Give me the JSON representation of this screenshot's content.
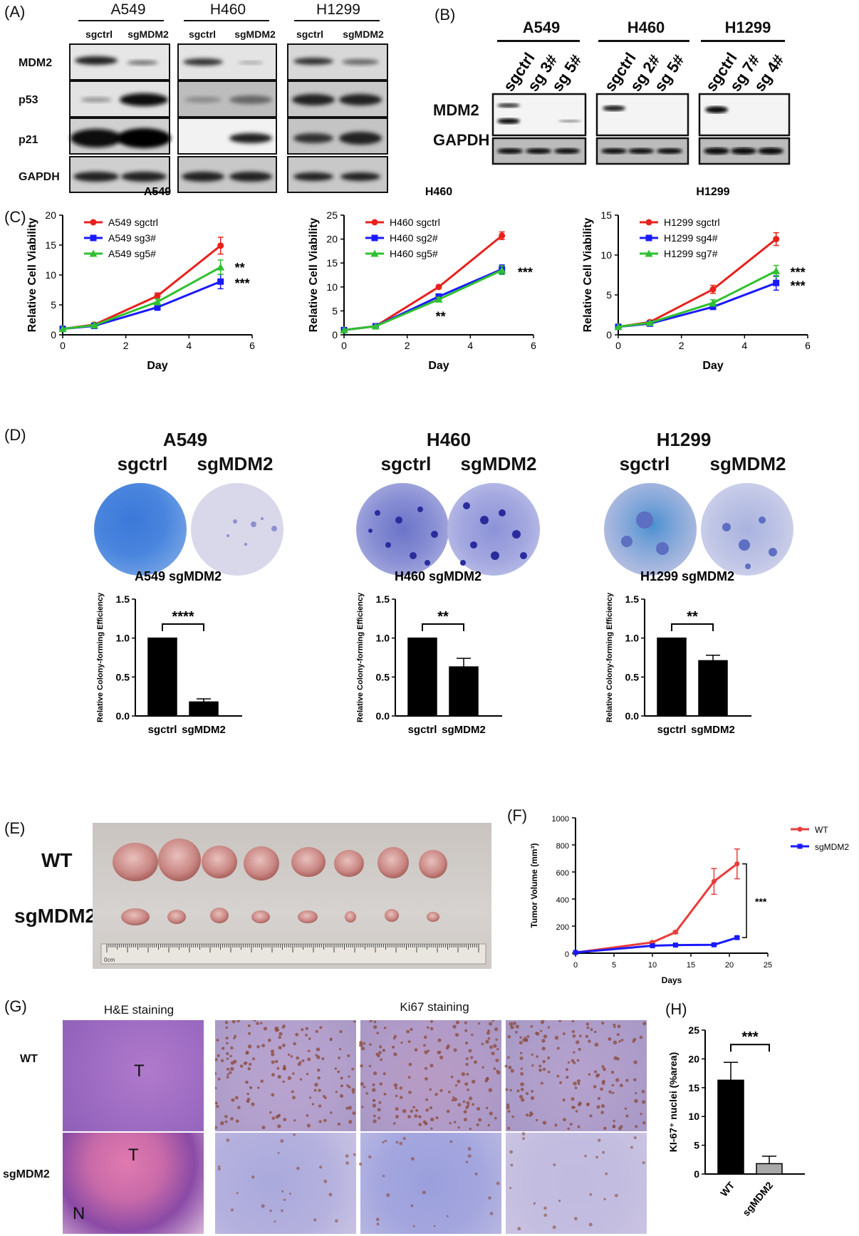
{
  "panel_labels": {
    "A": "(A)",
    "B": "(B)",
    "C": "(C)",
    "D": "(D)",
    "E": "(E)",
    "F": "(F)",
    "G": "(G)",
    "H": "(H)"
  },
  "panelA": {
    "cell_lines": [
      {
        "name": "A549",
        "lanes": [
          "sgctrl",
          "sgMDM2"
        ]
      },
      {
        "name": "H460",
        "lanes": [
          "sgctrl",
          "sgMDM2"
        ]
      },
      {
        "name": "H1299",
        "lanes": [
          "sgctrl",
          "sgMDM2"
        ]
      }
    ],
    "proteins": [
      "MDM2",
      "p53",
      "p21",
      "GAPDH"
    ]
  },
  "panelB": {
    "cell_lines": [
      {
        "name": "A549",
        "lanes": [
          "sgctrl",
          "sg 3#",
          "sg 5#"
        ]
      },
      {
        "name": "H460",
        "lanes": [
          "sgctrl",
          "sg 2#",
          "sg 5#"
        ]
      },
      {
        "name": "H1299",
        "lanes": [
          "sgctrl",
          "sg 7#",
          "sg 4#"
        ]
      }
    ],
    "proteins": [
      "MDM2",
      "GAPDH"
    ]
  },
  "panelD": {
    "cells": [
      {
        "name": "A549",
        "left": "sgctrl",
        "right": "sgMDM2"
      },
      {
        "name": "H460",
        "left": "sgctrl",
        "right": "sgMDM2"
      },
      {
        "name": "H1299",
        "left": "sgctrl",
        "right": "sgMDM2"
      }
    ]
  },
  "panelE": {
    "rows": [
      "WT",
      "sgMDM2"
    ],
    "ruler_label": "0cm"
  },
  "panelG": {
    "he_title": "H&E staining",
    "ki67_title": "Ki67 staining",
    "rows": [
      "WT",
      "sgMDM2"
    ],
    "marks": {
      "tumor": "T",
      "necrosis": "N"
    }
  },
  "chart_data": [
    {
      "id": "C1",
      "type": "line",
      "title": "A549",
      "xlabel": "Day",
      "ylabel": "Relative Cell Viability",
      "xlim": [
        0,
        6
      ],
      "ylim": [
        0,
        20
      ],
      "xticks": [
        0,
        2,
        4,
        6
      ],
      "yticks": [
        0,
        5,
        10,
        15,
        20
      ],
      "legend": "top-left",
      "series": [
        {
          "name": "A549 sgctrl",
          "color": "#e8211d",
          "marker": "circle",
          "x": [
            0,
            1,
            3,
            5
          ],
          "y": [
            1.0,
            1.7,
            6.5,
            14.9
          ],
          "err": [
            0,
            0.1,
            0.5,
            1.4
          ]
        },
        {
          "name": "A549 sg3#",
          "color": "#1a1aff",
          "marker": "square",
          "x": [
            0,
            1,
            3,
            5
          ],
          "y": [
            1.0,
            1.5,
            4.6,
            8.9
          ],
          "err": [
            0,
            0.1,
            0.5,
            1.2
          ]
        },
        {
          "name": "A549 sg5#",
          "color": "#2fc02f",
          "marker": "triangle",
          "x": [
            0,
            1,
            3,
            5
          ],
          "y": [
            1.0,
            1.6,
            5.5,
            11.3
          ],
          "err": [
            0,
            0.1,
            0.5,
            1.2
          ]
        }
      ],
      "annotations": [
        {
          "text": "**",
          "x": 5.45,
          "y": 11.2
        },
        {
          "text": "***",
          "x": 5.45,
          "y": 8.6
        }
      ]
    },
    {
      "id": "C2",
      "type": "line",
      "title": "H460",
      "xlabel": "Day",
      "ylabel": "Relative Cell Viability",
      "xlim": [
        0,
        6
      ],
      "ylim": [
        0,
        25
      ],
      "xticks": [
        0,
        2,
        4,
        6
      ],
      "yticks": [
        0,
        5,
        10,
        15,
        20,
        25
      ],
      "legend": "top-left",
      "series": [
        {
          "name": "H460 sgctrl",
          "color": "#e8211d",
          "marker": "circle",
          "x": [
            0,
            1,
            3,
            5
          ],
          "y": [
            1.0,
            1.8,
            10.0,
            20.7
          ],
          "err": [
            0,
            0.1,
            0.3,
            0.8
          ]
        },
        {
          "name": "H460 sg2#",
          "color": "#1a1aff",
          "marker": "square",
          "x": [
            0,
            1,
            3,
            5
          ],
          "y": [
            1.0,
            1.8,
            8.0,
            13.7
          ],
          "err": [
            0,
            0.1,
            0.4,
            0.9
          ]
        },
        {
          "name": "H460 sg5#",
          "color": "#2fc02f",
          "marker": "triangle",
          "x": [
            0,
            1,
            3,
            5
          ],
          "y": [
            1.0,
            1.8,
            7.4,
            13.5
          ],
          "err": [
            0,
            0.1,
            0.4,
            0.9
          ]
        }
      ],
      "annotations": [
        {
          "text": "***",
          "x": 5.5,
          "y": 13.0
        },
        {
          "text": "**",
          "x": 2.9,
          "y": 3.8
        }
      ]
    },
    {
      "id": "C3",
      "type": "line",
      "title": "H1299",
      "xlabel": "Day",
      "ylabel": "Relative Cell Viability",
      "xlim": [
        0,
        6
      ],
      "ylim": [
        0,
        15
      ],
      "xticks": [
        0,
        2,
        4,
        6
      ],
      "yticks": [
        0,
        5,
        10,
        15
      ],
      "legend": "top-left",
      "series": [
        {
          "name": "H1299 sgctrl",
          "color": "#e8211d",
          "marker": "circle",
          "x": [
            0,
            1,
            3,
            5
          ],
          "y": [
            1.0,
            1.6,
            5.7,
            12.0
          ],
          "err": [
            0,
            0.1,
            0.5,
            0.8
          ]
        },
        {
          "name": "H1299 sg4#",
          "color": "#1a1aff",
          "marker": "square",
          "x": [
            0,
            1,
            3,
            5
          ],
          "y": [
            1.0,
            1.4,
            3.5,
            6.5
          ],
          "err": [
            0,
            0.1,
            0.3,
            0.9
          ]
        },
        {
          "name": "H1299 sg7#",
          "color": "#2fc02f",
          "marker": "triangle",
          "x": [
            0,
            1,
            3,
            5
          ],
          "y": [
            1.0,
            1.5,
            4.0,
            8.0
          ],
          "err": [
            0,
            0.1,
            0.4,
            0.7
          ]
        }
      ],
      "annotations": [
        {
          "text": "***",
          "x": 5.45,
          "y": 7.8
        },
        {
          "text": "***",
          "x": 5.45,
          "y": 6.1
        }
      ]
    },
    {
      "id": "D1",
      "type": "bar",
      "title": "A549 sgMDM2",
      "ylabel": "Relative Colony-forming Efficiency",
      "categories": [
        "sgctrl",
        "sgMDM2"
      ],
      "values": [
        1.0,
        0.18
      ],
      "err": [
        0,
        0.04
      ],
      "ylim": [
        0,
        1.5
      ],
      "yticks": [
        0.0,
        0.5,
        1.0,
        1.5
      ],
      "significance": "****"
    },
    {
      "id": "D2",
      "type": "bar",
      "title": "H460 sgMDM2",
      "ylabel": "Relative Colony-forming Efficiency",
      "categories": [
        "sgctrl",
        "sgMDM2"
      ],
      "values": [
        1.0,
        0.63
      ],
      "err": [
        0,
        0.11
      ],
      "ylim": [
        0,
        1.5
      ],
      "yticks": [
        0.0,
        0.5,
        1.0,
        1.5
      ],
      "significance": "**"
    },
    {
      "id": "D3",
      "type": "bar",
      "title": "H1299 sgMDM2",
      "ylabel": "Relative Colony-forming Efficiency",
      "categories": [
        "sgctrl",
        "sgMDM2"
      ],
      "values": [
        1.0,
        0.71
      ],
      "err": [
        0,
        0.07
      ],
      "ylim": [
        0,
        1.5
      ],
      "yticks": [
        0.0,
        0.5,
        1.0,
        1.5
      ],
      "significance": "**"
    },
    {
      "id": "F",
      "type": "line",
      "xlabel": "Days",
      "ylabel": "Tumor Volume (mm³)",
      "xlim": [
        0,
        25
      ],
      "ylim": [
        0,
        1000
      ],
      "xticks": [
        0,
        5,
        10,
        15,
        20,
        25
      ],
      "yticks": [
        0,
        200,
        400,
        600,
        800,
        1000
      ],
      "legend": "top-right",
      "series": [
        {
          "name": "WT",
          "color": "#ea3c3c",
          "marker": "circle",
          "x": [
            0,
            10,
            13,
            18,
            21
          ],
          "y": [
            5,
            80,
            155,
            530,
            660
          ],
          "err": [
            0,
            8,
            10,
            95,
            110
          ]
        },
        {
          "name": "sgMDM2",
          "color": "#1a1aff",
          "marker": "square",
          "x": [
            0,
            10,
            13,
            18,
            21
          ],
          "y": [
            5,
            55,
            60,
            62,
            115
          ],
          "err": [
            0,
            5,
            5,
            6,
            8
          ]
        }
      ],
      "significance": "***"
    },
    {
      "id": "H",
      "type": "bar",
      "ylabel": "KI-67⁺ nuclei (%area)",
      "categories": [
        "WT",
        "sgMDM2"
      ],
      "values": [
        16.3,
        1.8
      ],
      "err": [
        3.1,
        1.3
      ],
      "colors": [
        "#000000",
        "#a9a9a9"
      ],
      "ylim": [
        0,
        25
      ],
      "yticks": [
        0,
        5,
        10,
        15,
        20,
        25
      ],
      "significance": "***"
    }
  ]
}
